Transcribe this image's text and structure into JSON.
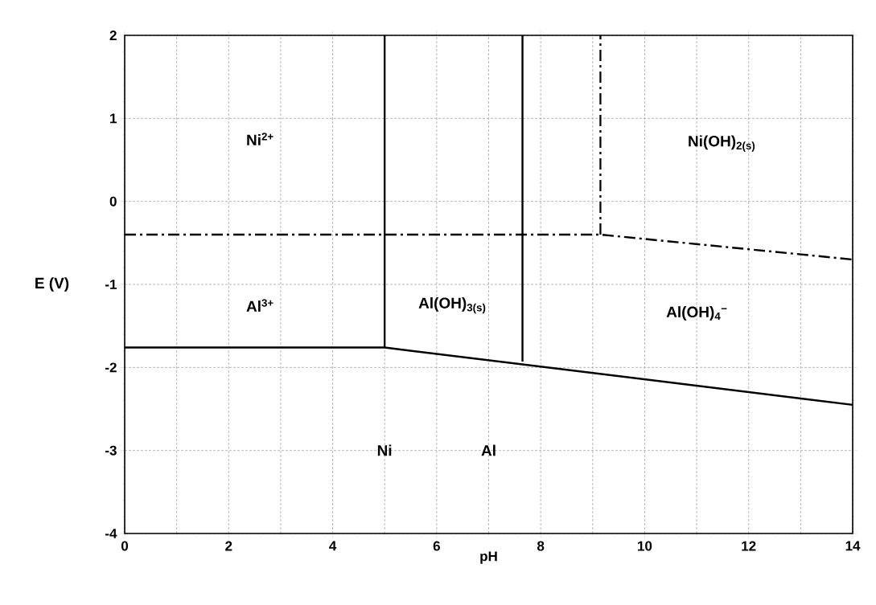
{
  "chart_data": {
    "type": "line",
    "xlabel": "pH",
    "ylabel": "E (V)",
    "xlim": [
      0,
      14
    ],
    "ylim": [
      -4,
      2
    ],
    "xticks": [
      0,
      2,
      4,
      6,
      8,
      10,
      12,
      14
    ],
    "yticks": [
      -4,
      -3,
      -2,
      -1,
      0,
      1,
      2
    ],
    "grid": true,
    "marker": "none",
    "series": [
      {
        "color": "#000000",
        "line_style": "solid",
        "x": [
          0,
          5,
          14
        ],
        "values": [
          -1.76,
          -1.76,
          -2.45
        ]
      },
      {
        "color": "#000000",
        "line_style": "solid",
        "x": [
          5,
          5
        ],
        "values": [
          -1.76,
          2
        ]
      },
      {
        "color": "#000000",
        "line_style": "solid",
        "x": [
          7.65,
          7.65
        ],
        "values": [
          -1.93,
          2
        ]
      },
      {
        "color": "#000000",
        "line_style": "dashed",
        "x": [
          0,
          9.15,
          14
        ],
        "values": [
          -0.4,
          -0.4,
          -0.7
        ]
      },
      {
        "color": "#000000",
        "line_style": "dashed",
        "x": [
          9.15,
          9.15
        ],
        "values": [
          -0.4,
          2
        ]
      }
    ],
    "annotations": [
      "Ni$^{2+}$",
      "Ni(OH)$_{2(s)}$",
      "Al$^{3+}$",
      "Al(OH)$_{3(s)}$",
      "Al(OH)$_{4}$$^{−}$",
      "Ni",
      "Al"
    ]
  }
}
